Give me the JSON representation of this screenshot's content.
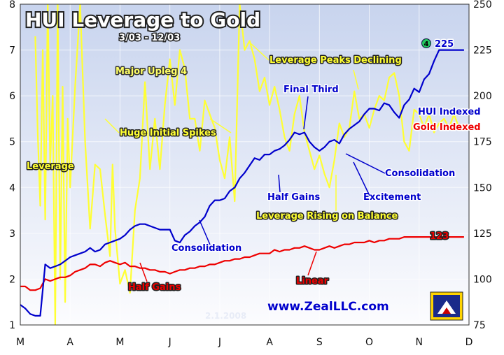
{
  "chart_data": {
    "type": "line",
    "title": "HUI Leverage to Gold",
    "subtitle": "3/03 - 12/03",
    "watermark_date": "2.1.2008",
    "website": "www.ZealLLC.com",
    "colors": {
      "leverage": "#ffff33",
      "hui": "#0000cc",
      "gold": "#ee0000",
      "background_top": "#c8d4ee",
      "background_bottom": "#fcfcfe",
      "endpoint_marker": "#22c55e"
    },
    "x_axis": {
      "tick_labels": [
        "M",
        "A",
        "M",
        "J",
        "J",
        "A",
        "S",
        "O",
        "N",
        "D"
      ],
      "range": [
        "2003-03",
        "2003-12"
      ]
    },
    "y_left": {
      "label": "Leverage",
      "ticks": [
        1,
        2,
        3,
        4,
        5,
        6,
        7,
        8
      ],
      "ylim": [
        1,
        8
      ]
    },
    "y_right": {
      "ticks": [
        75,
        100,
        125,
        150,
        175,
        200,
        225,
        250
      ],
      "ylim": [
        75,
        250
      ]
    },
    "legend": [
      {
        "name": "HUI Indexed",
        "color": "#0000cc"
      },
      {
        "name": "Gold Indexed",
        "color": "#ee0000"
      }
    ],
    "annotations": {
      "major_upleg": "Major Upleg 4",
      "huge_initial_spikes": "Huge Initial Spikes",
      "leverage_peaks_declining": "Leverage Peaks Declining",
      "final_third": "Final Third",
      "consolidation_1": "Consolidation",
      "consolidation_2": "Consolidation",
      "half_gains_hui": "Half Gains",
      "half_gains_gold": "Half Gains",
      "excitement": "Excitement",
      "leverage_rising": "Leverage Rising on Balance",
      "linear": "Linear",
      "hui_end_marker": "4",
      "hui_end_value": "225",
      "gold_end_value": "123"
    },
    "series": [
      {
        "name": "Leverage",
        "axis": "left",
        "x": [
          3.3,
          3.35,
          3.4,
          3.45,
          3.5,
          3.55,
          3.6,
          3.65,
          3.7,
          3.75,
          3.8,
          3.85,
          3.9,
          3.95,
          4.0,
          4.1,
          4.2,
          4.3,
          4.4,
          4.5,
          4.6,
          4.7,
          4.8,
          4.85,
          4.9,
          5.0,
          5.1,
          5.2,
          5.3,
          5.4,
          5.5,
          5.6,
          5.7,
          5.8,
          5.9,
          6.0,
          6.1,
          6.2,
          6.3,
          6.4,
          6.5,
          6.6,
          6.7,
          6.8,
          6.9,
          7.0,
          7.1,
          7.2,
          7.3,
          7.4,
          7.5,
          7.6,
          7.7,
          7.8,
          7.9,
          8.0,
          8.1,
          8.2,
          8.3,
          8.4,
          8.5,
          8.6,
          8.7,
          8.8,
          8.9,
          9.0,
          9.1,
          9.2,
          9.3,
          9.4,
          9.5,
          9.6,
          9.7,
          9.8,
          9.9,
          10.0,
          10.1,
          10.2,
          10.3,
          10.4,
          10.5,
          10.6,
          10.7,
          10.8,
          10.9,
          11.0,
          11.1,
          11.2,
          11.3,
          11.4,
          11.5,
          11.6,
          11.7,
          11.8
        ],
        "values": [
          7.3,
          5.2,
          3.6,
          7.0,
          3.3,
          8.0,
          4.5,
          6.0,
          1.0,
          8.0,
          2.0,
          6.2,
          1.5,
          5.5,
          4.0,
          6.2,
          8.0,
          5.0,
          3.1,
          4.5,
          4.4,
          3.4,
          2.5,
          4.5,
          3.1,
          1.9,
          2.2,
          1.7,
          3.5,
          4.2,
          6.3,
          4.4,
          5.5,
          4.4,
          5.8,
          6.8,
          5.8,
          7.0,
          6.6,
          5.5,
          5.5,
          4.8,
          5.9,
          5.6,
          5.3,
          4.6,
          4.2,
          5.1,
          3.7,
          8.0,
          7.0,
          7.2,
          6.8,
          6.1,
          6.4,
          5.8,
          6.2,
          5.7,
          5.1,
          4.8,
          5.6,
          6.0,
          5.2,
          4.8,
          4.4,
          4.7,
          4.3,
          4.0,
          4.6,
          5.4,
          5.1,
          5.3,
          6.1,
          5.5,
          5.6,
          5.3,
          5.7,
          6.0,
          5.9,
          6.4,
          6.5,
          6.0,
          5.0,
          4.8,
          5.7,
          5.6,
          5.3,
          5.6,
          5.2,
          5.4,
          5.5,
          5.3,
          5.6,
          5.3
        ]
      },
      {
        "name": "HUI Indexed",
        "axis": "right",
        "x": [
          3.0,
          3.1,
          3.2,
          3.3,
          3.4,
          3.5,
          3.6,
          3.7,
          3.8,
          3.9,
          4.0,
          4.1,
          4.2,
          4.3,
          4.4,
          4.5,
          4.6,
          4.7,
          4.8,
          4.9,
          5.0,
          5.1,
          5.2,
          5.3,
          5.4,
          5.5,
          5.6,
          5.7,
          5.8,
          5.9,
          6.0,
          6.1,
          6.2,
          6.3,
          6.4,
          6.5,
          6.6,
          6.7,
          6.8,
          6.9,
          7.0,
          7.1,
          7.2,
          7.3,
          7.4,
          7.5,
          7.6,
          7.7,
          7.8,
          7.9,
          8.0,
          8.1,
          8.2,
          8.3,
          8.4,
          8.5,
          8.6,
          8.7,
          8.8,
          8.9,
          9.0,
          9.1,
          9.2,
          9.3,
          9.4,
          9.5,
          9.6,
          9.7,
          9.8,
          9.9,
          10.0,
          10.1,
          10.2,
          10.3,
          10.4,
          10.5,
          10.6,
          10.7,
          10.8,
          10.9,
          11.0,
          11.1,
          11.2,
          11.3,
          11.4,
          11.5,
          11.6,
          11.7,
          11.8,
          11.9
        ],
        "values": [
          86,
          84,
          81,
          80,
          80,
          108,
          106,
          107,
          108,
          110,
          112,
          113,
          114,
          115,
          117,
          115,
          116,
          119,
          120,
          121,
          122,
          124,
          127,
          129,
          130,
          130,
          129,
          128,
          127,
          127,
          127,
          121,
          120,
          124,
          126,
          129,
          131,
          134,
          140,
          143,
          143,
          144,
          148,
          150,
          155,
          158,
          162,
          166,
          165,
          168,
          168,
          170,
          171,
          173,
          176,
          180,
          179,
          180,
          175,
          172,
          170,
          172,
          175,
          176,
          174,
          179,
          182,
          184,
          186,
          190,
          193,
          193,
          192,
          196,
          195,
          191,
          188,
          195,
          198,
          204,
          202,
          209,
          212,
          219,
          225,
          225,
          225,
          225,
          225,
          225
        ]
      },
      {
        "name": "Gold Indexed",
        "axis": "right",
        "x": [
          3.0,
          3.1,
          3.2,
          3.3,
          3.4,
          3.5,
          3.6,
          3.7,
          3.8,
          3.9,
          4.0,
          4.1,
          4.2,
          4.3,
          4.4,
          4.5,
          4.6,
          4.7,
          4.8,
          4.9,
          5.0,
          5.1,
          5.2,
          5.3,
          5.4,
          5.5,
          5.6,
          5.7,
          5.8,
          5.9,
          6.0,
          6.1,
          6.2,
          6.3,
          6.4,
          6.5,
          6.6,
          6.7,
          6.8,
          6.9,
          7.0,
          7.1,
          7.2,
          7.3,
          7.4,
          7.5,
          7.6,
          7.7,
          7.8,
          7.9,
          8.0,
          8.1,
          8.2,
          8.3,
          8.4,
          8.5,
          8.6,
          8.7,
          8.8,
          8.9,
          9.0,
          9.1,
          9.2,
          9.3,
          9.4,
          9.5,
          9.6,
          9.7,
          9.8,
          9.9,
          10.0,
          10.1,
          10.2,
          10.3,
          10.4,
          10.5,
          10.6,
          10.7,
          10.8,
          10.9,
          11.0,
          11.1,
          11.2,
          11.3,
          11.4,
          11.5,
          11.6,
          11.7,
          11.8,
          11.9
        ],
        "values": [
          96,
          96,
          94,
          94,
          95,
          100,
          99,
          100,
          101,
          101,
          102,
          104,
          105,
          106,
          108,
          108,
          107,
          109,
          110,
          109,
          108,
          109,
          107,
          107,
          106,
          106,
          105,
          105,
          104,
          104,
          103,
          104,
          105,
          105,
          106,
          106,
          107,
          107,
          108,
          108,
          109,
          110,
          110,
          111,
          111,
          112,
          112,
          113,
          114,
          114,
          114,
          116,
          115,
          116,
          116,
          117,
          117,
          118,
          117,
          116,
          116,
          117,
          118,
          117,
          118,
          119,
          119,
          120,
          120,
          120,
          121,
          120,
          121,
          121,
          122,
          122,
          122,
          123,
          123,
          123,
          123,
          123,
          123,
          123,
          123,
          123,
          123,
          123,
          123,
          123
        ]
      }
    ]
  }
}
